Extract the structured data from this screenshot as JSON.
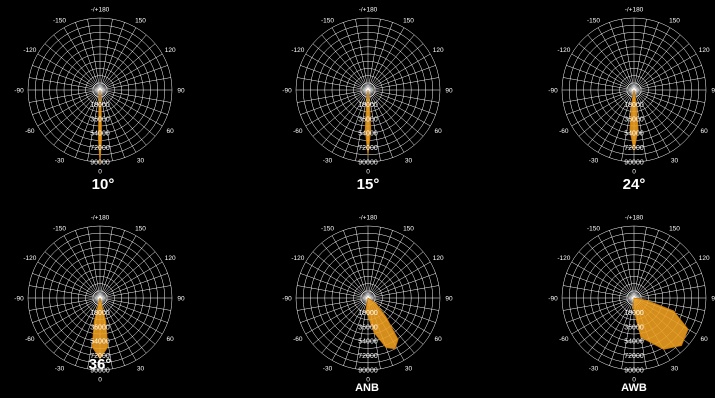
{
  "colors": {
    "background": "#000000",
    "grid": "#ffffff",
    "fill": "#f0a020",
    "stroke": "#c87800"
  },
  "chart_data": [
    {
      "type": "polar-area",
      "title": "10°",
      "angle_ticks": [
        "-/+180",
        "150",
        "120",
        "90",
        "60",
        "30",
        "0",
        "-30",
        "-60",
        "-90",
        "-120",
        "-150"
      ],
      "radial_ticks": [
        "18000",
        "36000",
        "54000",
        "72000",
        "90000"
      ],
      "rlim": [
        0,
        90000
      ],
      "series": [
        {
          "points": [
            [
              -6,
              0
            ],
            [
              -4,
              20000
            ],
            [
              -2,
              60000
            ],
            [
              0,
              92000
            ],
            [
              2,
              60000
            ],
            [
              4,
              20000
            ],
            [
              6,
              0
            ]
          ]
        }
      ]
    },
    {
      "type": "polar-area",
      "title": "15°",
      "angle_ticks": [
        "-/+180",
        "150",
        "120",
        "90",
        "60",
        "30",
        "0",
        "-30",
        "-60",
        "-90",
        "-120",
        "-150"
      ],
      "radial_ticks": [
        "18000",
        "36000",
        "54000",
        "72000",
        "90000"
      ],
      "rlim": [
        0,
        90000
      ],
      "series": [
        {
          "points": [
            [
              -9,
              0
            ],
            [
              -6,
              20000
            ],
            [
              -4,
              50000
            ],
            [
              0,
              82000
            ],
            [
              4,
              50000
            ],
            [
              6,
              20000
            ],
            [
              9,
              0
            ]
          ]
        }
      ]
    },
    {
      "type": "polar-area",
      "title": "24°",
      "angle_ticks": [
        "-/+180",
        "150",
        "120",
        "90",
        "60",
        "30",
        "0",
        "-30",
        "-60",
        "-90",
        "-120",
        "-150"
      ],
      "radial_ticks": [
        "18000",
        "36000",
        "54000",
        "72000",
        "90000"
      ],
      "rlim": [
        0,
        90000
      ],
      "series": [
        {
          "points": [
            [
              -13,
              0
            ],
            [
              -9,
              20000
            ],
            [
              -6,
              50000
            ],
            [
              0,
              76000
            ],
            [
              6,
              50000
            ],
            [
              9,
              20000
            ],
            [
              13,
              0
            ]
          ]
        }
      ]
    },
    {
      "type": "polar-area",
      "title": "36°",
      "angle_ticks": [
        "-/+180",
        "150",
        "120",
        "90",
        "60",
        "30",
        "0",
        "-30",
        "-60",
        "-90",
        "-120",
        "-150"
      ],
      "radial_ticks": [
        "18000",
        "36000",
        "54000",
        "72000",
        "90000"
      ],
      "rlim": [
        0,
        90000
      ],
      "series": [
        {
          "points": [
            [
              -20,
              0
            ],
            [
              -14,
              30000
            ],
            [
              -9,
              62000
            ],
            [
              0,
              76000
            ],
            [
              9,
              62000
            ],
            [
              14,
              30000
            ],
            [
              20,
              0
            ]
          ]
        }
      ]
    },
    {
      "type": "polar-area",
      "title": "ANB",
      "angle_ticks": [
        "-/+180",
        "150",
        "120",
        "90",
        "60",
        "30",
        "0",
        "-30",
        "-60",
        "-90",
        "-120",
        "-150"
      ],
      "radial_ticks": [
        "18000",
        "36000",
        "54000",
        "72000",
        "90000"
      ],
      "rlim": [
        0,
        90000
      ],
      "series": [
        {
          "points": [
            [
              0,
              0
            ],
            [
              -10,
              16000
            ],
            [
              10,
              44000
            ],
            [
              20,
              66000
            ],
            [
              28,
              72000
            ],
            [
              36,
              64000
            ],
            [
              44,
              32000
            ],
            [
              56,
              12000
            ],
            [
              70,
              0
            ]
          ]
        }
      ]
    },
    {
      "type": "polar-area",
      "title": "AWB",
      "angle_ticks": [
        "-/+180",
        "150",
        "120",
        "90",
        "60",
        "30",
        "0",
        "-30",
        "-60",
        "-90",
        "-120",
        "-150"
      ],
      "radial_ticks": [
        "18000",
        "36000",
        "54000",
        "72000",
        "90000"
      ],
      "rlim": [
        0,
        90000
      ],
      "series": [
        {
          "points": [
            [
              0,
              0
            ],
            [
              -5,
              12000
            ],
            [
              10,
              50000
            ],
            [
              30,
              74000
            ],
            [
              45,
              84000
            ],
            [
              60,
              78000
            ],
            [
              72,
              52000
            ],
            [
              80,
              16000
            ],
            [
              85,
              0
            ]
          ]
        }
      ]
    }
  ]
}
